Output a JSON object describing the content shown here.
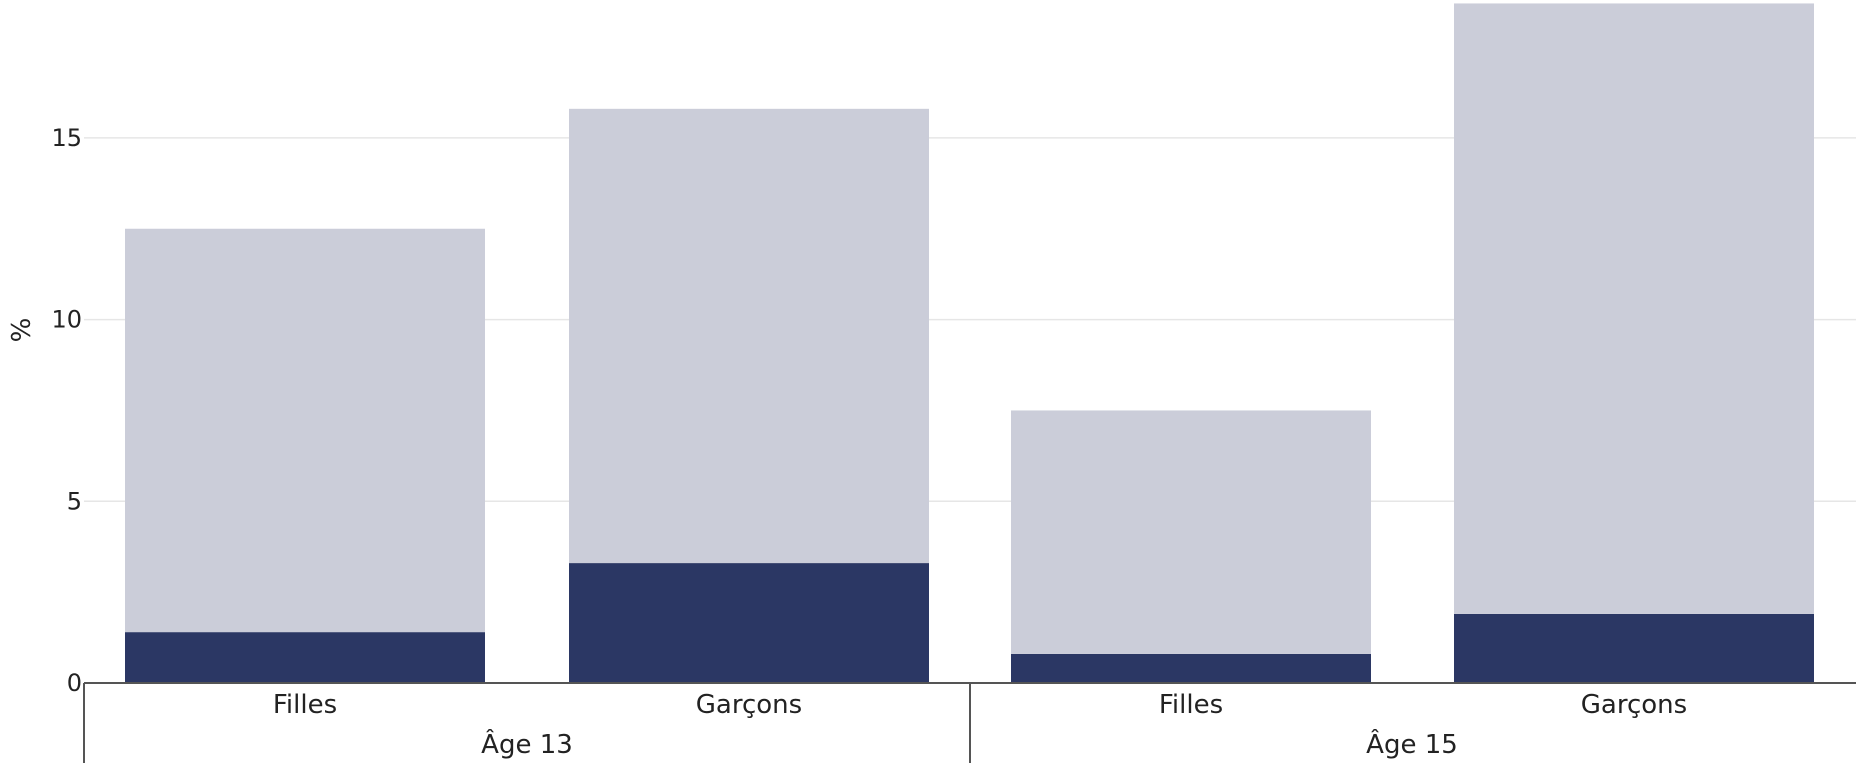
{
  "chart_data": {
    "type": "bar",
    "stacked": true,
    "groups": [
      {
        "label": "Âge 13",
        "categories": [
          "Filles",
          "Garçons"
        ]
      },
      {
        "label": "Âge 15",
        "categories": [
          "Filles",
          "Garçons"
        ]
      }
    ],
    "categories": [
      "Filles",
      "Garçons",
      "Filles",
      "Garçons"
    ],
    "series": [
      {
        "values": [
          1.4,
          3.3,
          0.8,
          1.9
        ]
      },
      {
        "values": [
          11.1,
          12.5,
          6.7,
          16.8
        ]
      }
    ],
    "totals": [
      12.5,
      15.8,
      7.5,
      18.7
    ],
    "title": "",
    "xlabel": "",
    "ylabel": "%",
    "ylim": [
      0,
      18.7
    ],
    "yticks": [
      0,
      5,
      10,
      15
    ],
    "grid": true,
    "colors": {
      "dark": "#2b3764",
      "light": "#cbcdd9",
      "grid": "#e6e6e6",
      "axis": "#555555"
    }
  }
}
